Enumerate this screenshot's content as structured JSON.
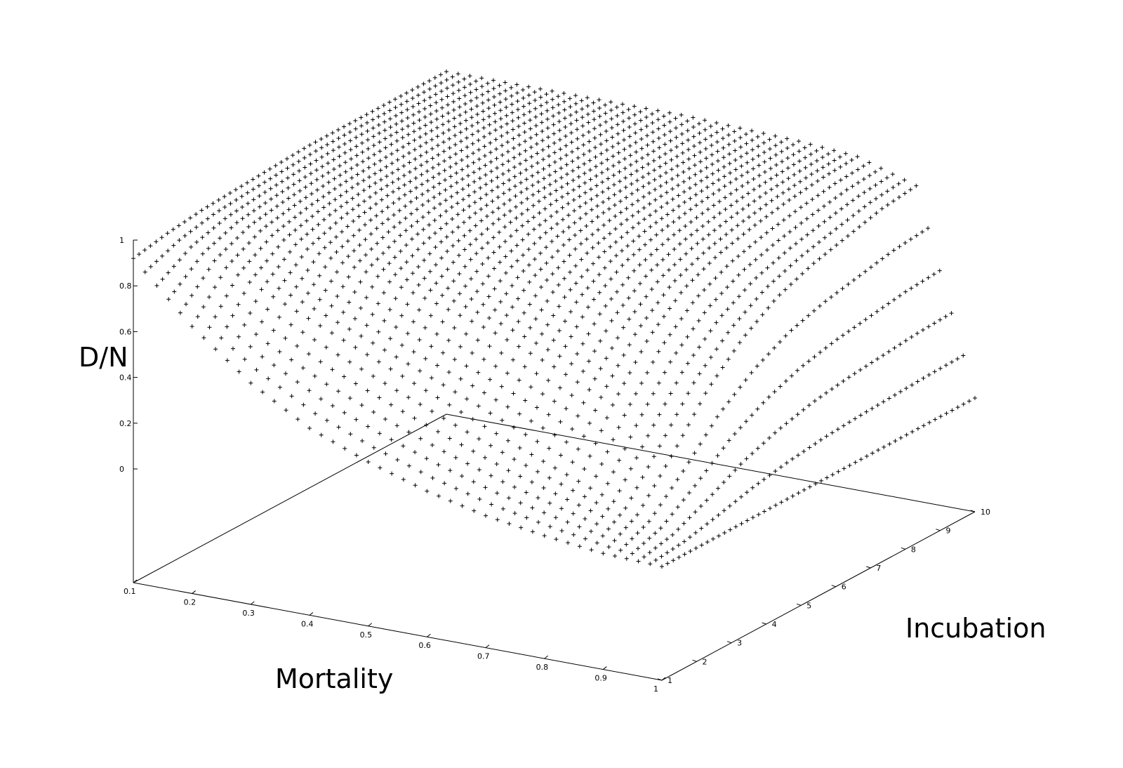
{
  "chart_data": {
    "type": "scatter",
    "subtype": "3d-surface-points",
    "marker": "+",
    "grid": false,
    "legend": "none",
    "xlabel": "Mortality",
    "ylabel": "Incubation",
    "zlabel": "D/N",
    "xlim": [
      0.1,
      1
    ],
    "ylim": [
      1,
      10
    ],
    "zlim": [
      0,
      1
    ],
    "x_ticks": [
      "0.1",
      "0.2",
      "0.3",
      "0.4",
      "0.5",
      "0.6",
      "0.7",
      "0.8",
      "0.9",
      "1"
    ],
    "y_ticks": [
      "1",
      "2",
      "3",
      "4",
      "5",
      "6",
      "7",
      "8",
      "9",
      "10"
    ],
    "z_ticks": [
      "0",
      "0.2",
      "0.4",
      "0.6",
      "0.8",
      "1"
    ],
    "grid_points": {
      "mortality": [
        0.1,
        0.2,
        0.3,
        0.4,
        0.5,
        0.6,
        0.7,
        0.8,
        0.9,
        1.0
      ],
      "incubation": [
        1,
        2,
        3,
        4,
        5,
        6,
        7,
        8,
        9,
        10
      ],
      "dn_by_incubation": [
        [
          0.92,
          0.67,
          0.47,
          0.32,
          0.22,
          0.14,
          0.08,
          0.04,
          0.01,
          0.0
        ],
        [
          0.95,
          0.85,
          0.74,
          0.63,
          0.52,
          0.41,
          0.3,
          0.2,
          0.1,
          0.0
        ],
        [
          0.97,
          0.93,
          0.88,
          0.83,
          0.76,
          0.68,
          0.58,
          0.46,
          0.28,
          0.0
        ],
        [
          0.98,
          0.96,
          0.94,
          0.91,
          0.87,
          0.82,
          0.76,
          0.66,
          0.48,
          0.0
        ],
        [
          0.99,
          0.98,
          0.97,
          0.95,
          0.93,
          0.9,
          0.86,
          0.79,
          0.62,
          0.0
        ],
        [
          1.0,
          0.99,
          0.98,
          0.97,
          0.96,
          0.94,
          0.91,
          0.86,
          0.72,
          0.0
        ],
        [
          1.0,
          1.0,
          0.99,
          0.98,
          0.97,
          0.96,
          0.94,
          0.9,
          0.78,
          0.0
        ],
        [
          1.0,
          1.0,
          1.0,
          0.99,
          0.98,
          0.97,
          0.96,
          0.93,
          0.82,
          0.0
        ],
        [
          1.0,
          1.0,
          1.0,
          1.0,
          0.99,
          0.98,
          0.97,
          0.95,
          0.86,
          0.0
        ],
        [
          1.0,
          1.0,
          1.0,
          1.0,
          1.0,
          0.99,
          0.98,
          0.96,
          0.88,
          0.0
        ]
      ]
    }
  }
}
